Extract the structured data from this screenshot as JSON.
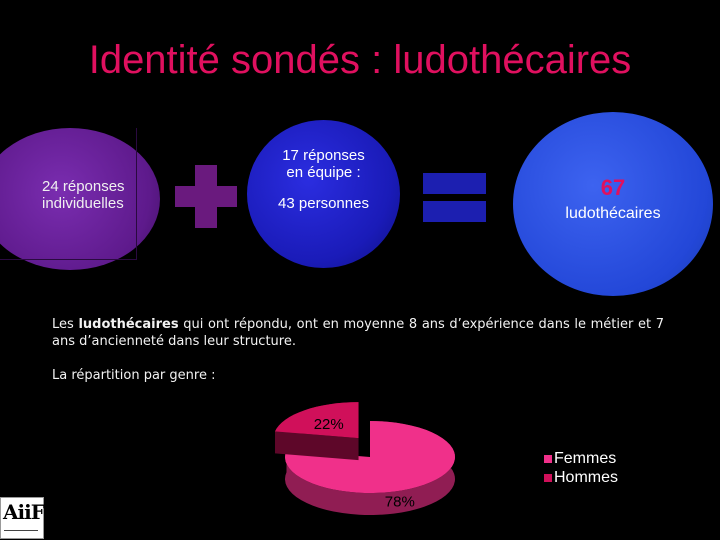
{
  "slide": {
    "title": "Identité sondés : ludothécaires"
  },
  "equation": {
    "individual": {
      "line1": "24 réponses",
      "line2": "individuelles"
    },
    "team": {
      "line1": "17 réponses",
      "line2": "en équipe :",
      "line3": "43 personnes"
    },
    "total": {
      "number": "67",
      "label": "ludothécaires"
    }
  },
  "paragraph": {
    "before": "Les ",
    "bold": "ludothécaires",
    "after": " qui ont répondu, ont en moyenne 8 ans d’expérience dans le métier et 7 ans d’ancienneté dans leur structure."
  },
  "genre_label": "La répartition par genre :",
  "chart_data": {
    "type": "pie",
    "categories": [
      "Femmes",
      "Hommes"
    ],
    "values": [
      78,
      22
    ],
    "labels": [
      "78%",
      "22%"
    ],
    "colors": [
      "#f0308a",
      "#d0105a"
    ],
    "legend": "right"
  },
  "logo": {
    "text": "AiiF"
  }
}
